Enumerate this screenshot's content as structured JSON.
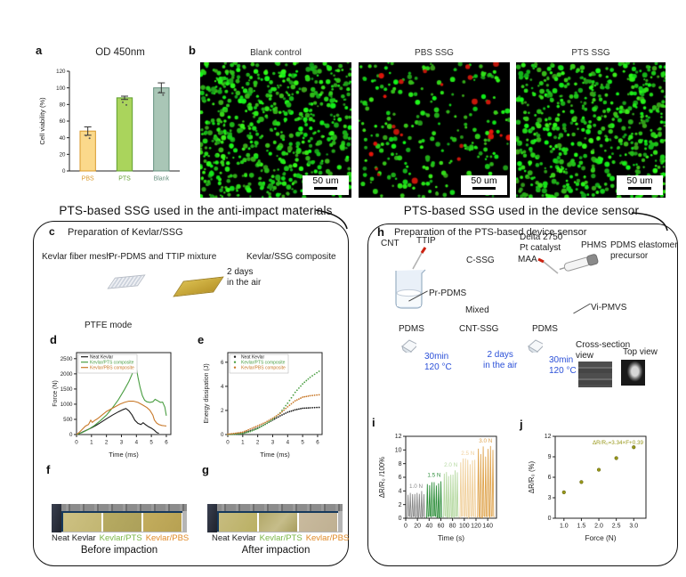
{
  "panel_a": {
    "label": "a",
    "title": "OD 450nm"
  },
  "panel_b": {
    "label": "b",
    "images": [
      {
        "title": "Blank control",
        "scale_label": "50 um",
        "green_dots": 680,
        "red_dots": 0,
        "seed": 11
      },
      {
        "title": "PBS SSG",
        "scale_label": "50 um",
        "green_dots": 240,
        "red_dots": 26,
        "seed": 22
      },
      {
        "title": "PTS SSG",
        "scale_label": "50 um",
        "green_dots": 600,
        "red_dots": 0,
        "seed": 33
      }
    ]
  },
  "sections": {
    "left_title": "PTS-based SSG used in the anti-impact materials",
    "right_title": "PTS-based SSG used in the device sensor"
  },
  "panel_c": {
    "label": "c",
    "title": "Preparation of Kevlar/SSG",
    "items": [
      "Kevlar fiber mesh",
      "Pr-PDMS and TTIP mixture",
      "Kevlar/SSG composite"
    ],
    "note": [
      "2 days",
      "in the air"
    ],
    "mode_title": "PTFE mode"
  },
  "panel_d": {
    "label": "d"
  },
  "panel_e": {
    "label": "e"
  },
  "panel_f": {
    "label": "f",
    "samples": [
      "Neat Kevlar",
      "Kevlar/PTS",
      "Kevlar/PBS"
    ],
    "sample_colors": [
      "#1a1a1a",
      "#7ab648",
      "#e08a28"
    ],
    "caption": "Before impaction"
  },
  "panel_g": {
    "label": "g",
    "samples": [
      "Neat Kevlar",
      "Kevlar/PTS",
      "Kevlar/PBS"
    ],
    "sample_colors": [
      "#1a1a1a",
      "#7ab648",
      "#e08a28"
    ],
    "caption": "After impaction"
  },
  "panel_h": {
    "label": "h",
    "title": "Preparation of the PTS-based device sensor",
    "cnt": "CNT",
    "ttip": "TTIP",
    "c_ssg": "C-SSG",
    "delta": "Delta 2750",
    "pt_catalyst": "Pt catalyst",
    "maa": "MAA",
    "phms": "PHMS",
    "pdms_elastomer": [
      "PDMS elastomer",
      "precursor"
    ],
    "pr_pdms": "Pr-PDMS",
    "mixed": "Mixed",
    "vi_pmvs": "Vi-PMVS",
    "pdms_left": "PDMS",
    "cnt_ssg": "CNT-SSG",
    "pdms_right": "PDMS",
    "step1": [
      "30min",
      "120 °C"
    ],
    "step2": [
      "2 days",
      "in the air"
    ],
    "step3": [
      "30min",
      "120 °C"
    ],
    "cross_section": [
      "Cross-section",
      "view"
    ],
    "top_view": "Top view",
    "step_color": "#2b50d8"
  },
  "panel_i": {
    "label": "i"
  },
  "panel_j": {
    "label": "j"
  },
  "chart_data": [
    {
      "id": "a",
      "type": "bar",
      "title": "OD 450nm",
      "ylabel": "Cell viability (%)",
      "categories": [
        "PBS",
        "PTS",
        "Blank"
      ],
      "values": [
        48,
        88,
        100
      ],
      "errors": [
        5,
        2,
        6
      ],
      "bar_fills": [
        "#fbd98b",
        "#aad45c",
        "#a9c6b6"
      ],
      "bar_edges": [
        "#d99a2b",
        "#5f9e2f",
        "#64907e"
      ],
      "ylim": [
        0,
        120
      ],
      "yticks": [
        0,
        20,
        40,
        60,
        80,
        100,
        120
      ],
      "frame": "axes"
    },
    {
      "id": "d",
      "type": "line",
      "xlabel": "Time (ms)",
      "ylabel": "Force (N)",
      "xlim": [
        0,
        6.3
      ],
      "ylim": [
        0,
        2700
      ],
      "xticks": [
        0,
        1,
        2,
        3,
        4,
        5,
        6
      ],
      "yticks": [
        0,
        500,
        1000,
        1500,
        2000,
        2500
      ],
      "frame": "box",
      "legend": true,
      "series": [
        {
          "name": "Neat Kevlar",
          "color": "#1a1a1a",
          "points": [
            [
              0,
              0
            ],
            [
              0.3,
              60
            ],
            [
              0.6,
              130
            ],
            [
              1,
              220
            ],
            [
              1.3,
              300
            ],
            [
              1.6,
              390
            ],
            [
              2,
              520
            ],
            [
              2.4,
              640
            ],
            [
              2.8,
              750
            ],
            [
              3.1,
              820
            ],
            [
              3.3,
              860
            ],
            [
              3.5,
              780
            ],
            [
              3.7,
              650
            ],
            [
              3.9,
              470
            ],
            [
              4.1,
              370
            ],
            [
              4.3,
              330
            ],
            [
              4.45,
              390
            ],
            [
              4.6,
              330
            ],
            [
              4.8,
              260
            ],
            [
              5,
              210
            ],
            [
              5.2,
              140
            ],
            [
              5.35,
              70
            ],
            [
              5.5,
              40
            ]
          ]
        },
        {
          "name": "Kevlar/PTS composite",
          "color": "#4a9e42",
          "points": [
            [
              0,
              0
            ],
            [
              0.4,
              70
            ],
            [
              0.8,
              170
            ],
            [
              1.2,
              300
            ],
            [
              1.6,
              460
            ],
            [
              2,
              640
            ],
            [
              2.4,
              880
            ],
            [
              2.8,
              1150
            ],
            [
              3.2,
              1480
            ],
            [
              3.5,
              1750
            ],
            [
              3.7,
              1980
            ],
            [
              3.9,
              2240
            ],
            [
              4,
              2180
            ],
            [
              4.1,
              1900
            ],
            [
              4.25,
              1550
            ],
            [
              4.4,
              1280
            ],
            [
              4.55,
              1130
            ],
            [
              4.7,
              1080
            ],
            [
              4.9,
              1060
            ],
            [
              5.1,
              1080
            ],
            [
              5.25,
              1160
            ],
            [
              5.4,
              1120
            ],
            [
              5.6,
              1060
            ],
            [
              5.75,
              1070
            ],
            [
              5.9,
              900
            ],
            [
              6,
              620
            ]
          ]
        },
        {
          "name": "Kevlar/PBS composite",
          "color": "#c87828",
          "points": [
            [
              0,
              0
            ],
            [
              0.2,
              80
            ],
            [
              0.4,
              180
            ],
            [
              0.6,
              280
            ],
            [
              0.8,
              330
            ],
            [
              0.95,
              470
            ],
            [
              1.05,
              400
            ],
            [
              1.2,
              460
            ],
            [
              1.4,
              520
            ],
            [
              1.6,
              600
            ],
            [
              1.8,
              680
            ],
            [
              2,
              760
            ],
            [
              2.3,
              840
            ],
            [
              2.6,
              920
            ],
            [
              2.9,
              1000
            ],
            [
              3.2,
              1060
            ],
            [
              3.5,
              1100
            ],
            [
              3.8,
              1100
            ],
            [
              4.1,
              1060
            ],
            [
              4.4,
              980
            ],
            [
              4.7,
              890
            ],
            [
              4.9,
              800
            ],
            [
              5.1,
              640
            ],
            [
              5.2,
              480
            ],
            [
              5.35,
              380
            ],
            [
              5.5,
              330
            ],
            [
              5.7,
              300
            ],
            [
              5.85,
              290
            ],
            [
              6,
              280
            ]
          ]
        }
      ]
    },
    {
      "id": "e",
      "type": "line",
      "marker": true,
      "xlabel": "Time (ms)",
      "ylabel": "Energy dissipation (J)",
      "xlim": [
        0,
        6.3
      ],
      "ylim": [
        0,
        6.8
      ],
      "xticks": [
        0,
        1,
        2,
        3,
        4,
        5,
        6
      ],
      "yticks": [
        0,
        2,
        4,
        6
      ],
      "frame": "box",
      "legend": true,
      "series": [
        {
          "name": "Neat Kevlar",
          "color": "#1a1a1a",
          "points": [
            [
              0,
              0.02
            ],
            [
              0.5,
              0.06
            ],
            [
              1,
              0.12
            ],
            [
              1.5,
              0.3
            ],
            [
              2,
              0.55
            ],
            [
              2.5,
              0.85
            ],
            [
              3,
              1.2
            ],
            [
              3.5,
              1.55
            ],
            [
              4,
              1.85
            ],
            [
              4.5,
              2.05
            ],
            [
              5,
              2.18
            ],
            [
              5.5,
              2.22
            ],
            [
              6.1,
              2.25
            ]
          ]
        },
        {
          "name": "Kevlar/PTS composite",
          "color": "#4a9e42",
          "points": [
            [
              0,
              0
            ],
            [
              0.5,
              0.03
            ],
            [
              1,
              0.08
            ],
            [
              1.5,
              0.25
            ],
            [
              2,
              0.5
            ],
            [
              2.5,
              0.85
            ],
            [
              3,
              1.25
            ],
            [
              3.5,
              1.8
            ],
            [
              4,
              2.6
            ],
            [
              4.5,
              3.5
            ],
            [
              5,
              4.2
            ],
            [
              5.5,
              4.75
            ],
            [
              6.1,
              5.25
            ]
          ]
        },
        {
          "name": "Kevlar/PBS composite",
          "color": "#c87828",
          "points": [
            [
              0,
              0.03
            ],
            [
              0.5,
              0.1
            ],
            [
              1,
              0.2
            ],
            [
              1.5,
              0.45
            ],
            [
              2,
              0.72
            ],
            [
              2.5,
              1.0
            ],
            [
              3,
              1.35
            ],
            [
              3.5,
              1.75
            ],
            [
              4,
              2.3
            ],
            [
              4.5,
              2.8
            ],
            [
              5,
              3.1
            ],
            [
              5.5,
              3.22
            ],
            [
              6.1,
              3.3
            ]
          ]
        }
      ]
    },
    {
      "id": "i",
      "type": "pulses",
      "xlabel": "Time (s)",
      "ylabel": "ΔR/R₀ /100%",
      "xlim": [
        0,
        155
      ],
      "ylim": [
        0,
        12
      ],
      "xticks": [
        0,
        20,
        40,
        60,
        80,
        100,
        120,
        140
      ],
      "yticks": [
        0,
        2,
        4,
        6,
        8,
        10,
        12
      ],
      "frame": "box",
      "groups": [
        {
          "force": "1.0 N",
          "color": "#8a8a8a",
          "t0": 2,
          "t1": 33,
          "cycles": 8,
          "amp": 4.0
        },
        {
          "force": "1.5 N",
          "color": "#2f8f3c",
          "t0": 35,
          "t1": 62,
          "cycles": 7,
          "amp": 5.6
        },
        {
          "force": "2.0 N",
          "color": "#b6d9a2",
          "t0": 64,
          "t1": 90,
          "cycles": 7,
          "amp": 7.1
        },
        {
          "force": "2.5 N",
          "color": "#f0d09c",
          "t0": 92,
          "t1": 120,
          "cycles": 7,
          "amp": 8.8
        },
        {
          "force": "3.0 N",
          "color": "#dfa44e",
          "t0": 122,
          "t1": 151,
          "cycles": 7,
          "amp": 10.6
        }
      ]
    },
    {
      "id": "j",
      "type": "scatter",
      "xlabel": "Force (N)",
      "ylabel": "ΔR/R₀ (%)",
      "xlim": [
        0.75,
        3.35
      ],
      "ylim": [
        0,
        12
      ],
      "xticks": [
        1,
        1.5,
        2,
        2.5,
        3
      ],
      "xticklabels": [
        "1.0",
        "1.5",
        "2.0",
        "2.5",
        "3.0"
      ],
      "yticks": [
        0,
        3,
        6,
        9,
        12
      ],
      "frame": "box",
      "color": "#98981a",
      "annotation": "ΔR/R₀=3.34×F+0.39",
      "x": [
        1.0,
        1.5,
        2.0,
        2.5,
        3.0
      ],
      "y": [
        3.8,
        5.3,
        7.1,
        8.8,
        10.4
      ],
      "yerr": [
        0.15,
        0.15,
        0.15,
        0.15,
        0.2
      ]
    }
  ]
}
